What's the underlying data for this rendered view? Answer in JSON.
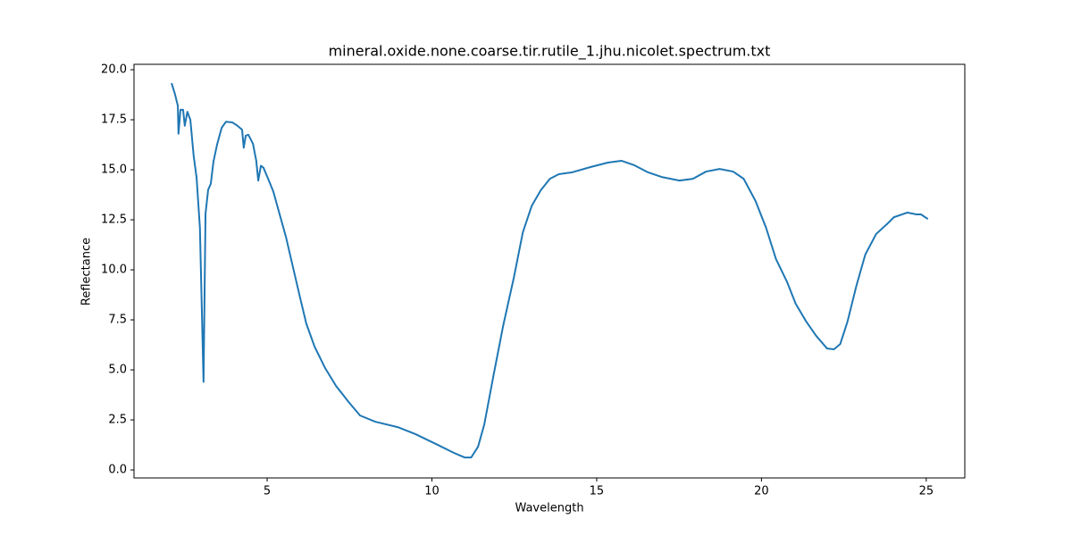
{
  "chart_data": {
    "type": "line",
    "title": "mineral.oxide.none.coarse.tir.rutile_1.jhu.nicolet.spectrum.txt",
    "x_label": "Wavelength",
    "y_label": "Reflectance",
    "xlim": [
      0.96,
      26.17
    ],
    "ylim": [
      -0.4,
      20.27
    ],
    "xticks": [
      5,
      10,
      15,
      20,
      25
    ],
    "yticks": [
      {
        "value": 0,
        "label": "0.0"
      },
      2.5,
      {
        "value": 5,
        "label": "5.0"
      },
      7.5,
      {
        "value": 10,
        "label": "10.0"
      },
      12.5,
      {
        "value": 15,
        "label": "15.0"
      },
      17.5,
      {
        "value": 20,
        "label": "20.0"
      }
    ],
    "grid": false,
    "series": [
      {
        "color": "#1f77b4",
        "x": [
          2.1,
          2.2,
          2.29,
          2.31,
          2.37,
          2.45,
          2.5,
          2.58,
          2.67,
          2.77,
          2.86,
          2.96,
          3.07,
          3.13,
          3.21,
          3.29,
          3.37,
          3.48,
          3.62,
          3.75,
          3.94,
          4.1,
          4.24,
          4.29,
          4.35,
          4.43,
          4.57,
          4.67,
          4.73,
          4.81,
          4.89,
          5.03,
          5.19,
          5.38,
          5.57,
          5.76,
          5.98,
          6.19,
          6.44,
          6.76,
          7.09,
          7.47,
          7.82,
          8.28,
          8.96,
          9.5,
          10.18,
          10.67,
          11.0,
          11.19,
          11.4,
          11.59,
          11.87,
          12.16,
          12.49,
          12.76,
          13.03,
          13.3,
          13.58,
          13.85,
          14.25,
          14.8,
          15.34,
          15.75,
          16.15,
          16.56,
          16.97,
          17.51,
          17.92,
          18.32,
          18.73,
          19.14,
          19.46,
          19.82,
          20.14,
          20.44,
          20.77,
          21.04,
          21.36,
          21.66,
          21.99,
          22.2,
          22.39,
          22.61,
          22.88,
          23.15,
          23.48,
          23.83,
          24.02,
          24.43,
          24.7,
          24.84,
          25.05
        ],
        "values": [
          19.33,
          18.8,
          18.2,
          16.8,
          18.0,
          18.0,
          17.2,
          17.9,
          17.5,
          15.7,
          14.6,
          12.1,
          4.4,
          12.8,
          14.0,
          14.3,
          15.4,
          16.25,
          17.1,
          17.4,
          17.37,
          17.2,
          17.0,
          16.1,
          16.7,
          16.75,
          16.3,
          15.45,
          14.46,
          15.2,
          15.1,
          14.55,
          13.9,
          12.77,
          11.65,
          10.3,
          8.75,
          7.3,
          6.16,
          5.09,
          4.2,
          3.4,
          2.72,
          2.41,
          2.14,
          1.79,
          1.25,
          0.85,
          0.62,
          0.62,
          1.16,
          2.28,
          4.73,
          7.19,
          9.64,
          11.88,
          13.2,
          13.97,
          14.55,
          14.78,
          14.87,
          15.13,
          15.36,
          15.45,
          15.22,
          14.87,
          14.64,
          14.46,
          14.55,
          14.91,
          15.04,
          14.91,
          14.55,
          13.44,
          12.1,
          10.54,
          9.42,
          8.3,
          7.41,
          6.7,
          6.07,
          6.03,
          6.29,
          7.41,
          9.2,
          10.76,
          11.79,
          12.32,
          12.63,
          12.86,
          12.77,
          12.77,
          12.54
        ]
      }
    ]
  }
}
